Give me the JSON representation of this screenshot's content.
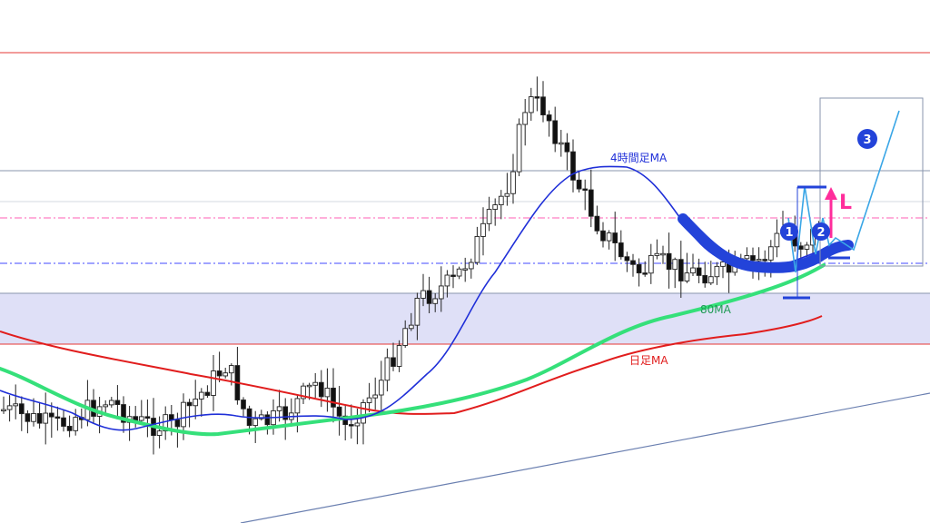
{
  "chart_data": {
    "type": "candlestick",
    "colors": {
      "bull": "#ffffff",
      "bear": "#111111",
      "wick": "#222222",
      "ma_4h": "#1f2fd8",
      "ma_80": "#35e07a",
      "ma_daily": "#e11d1d",
      "resistance": "#e53935",
      "level": "#8a96ad",
      "dash_pink": "#ff5fb4",
      "dash_blue": "#4048ff",
      "zone": "#dfe0f7",
      "trend": "#6a7fb0",
      "highlight": "#2343d9",
      "scenario": "#3aa6e6",
      "marker": "#ff2d9b"
    },
    "labels": {
      "ma_4h": "4時間足MA",
      "ma_80": "80MA",
      "ma_daily": "日足MA",
      "entry_mark": "L",
      "step1": "1",
      "step2": "2",
      "step3": "3"
    }
  }
}
